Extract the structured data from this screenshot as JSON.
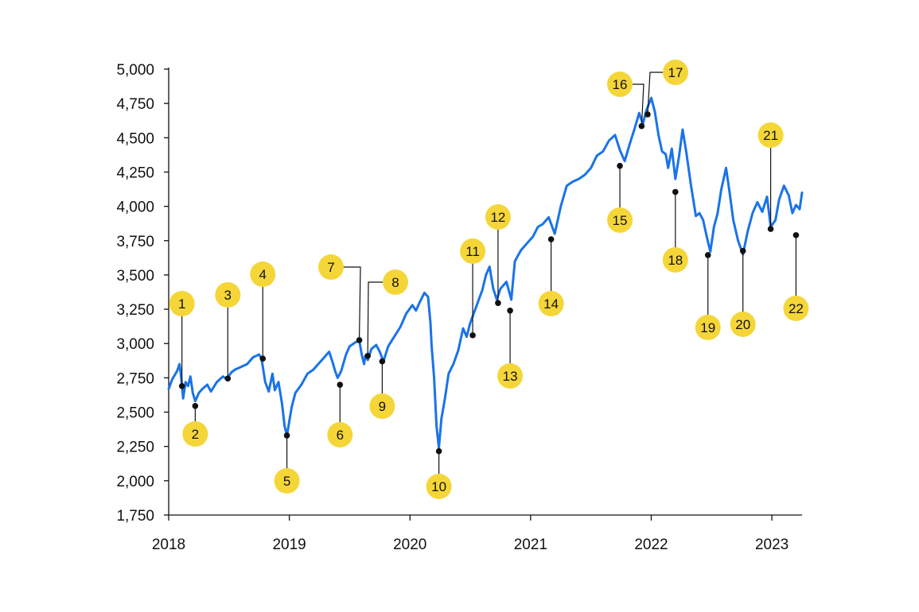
{
  "chart_data": {
    "type": "line",
    "title": "",
    "xlabel": "",
    "ylabel": "",
    "xlim": [
      2018.0,
      2023.25
    ],
    "ylim": [
      1750,
      5000
    ],
    "grid": false,
    "legend": "none",
    "x_ticks": [
      {
        "value": 2018,
        "label": "2018"
      },
      {
        "value": 2019,
        "label": "2019"
      },
      {
        "value": 2020,
        "label": "2020"
      },
      {
        "value": 2021,
        "label": "2021"
      },
      {
        "value": 2022,
        "label": "2022"
      },
      {
        "value": 2023,
        "label": "2023"
      }
    ],
    "y_ticks": [
      {
        "value": 1750,
        "label": "1,750"
      },
      {
        "value": 2000,
        "label": "2,000"
      },
      {
        "value": 2250,
        "label": "2,250"
      },
      {
        "value": 2500,
        "label": "2,500"
      },
      {
        "value": 2750,
        "label": "2,750"
      },
      {
        "value": 3000,
        "label": "3,000"
      },
      {
        "value": 3250,
        "label": "3,250"
      },
      {
        "value": 3500,
        "label": "3,500"
      },
      {
        "value": 3750,
        "label": "3,750"
      },
      {
        "value": 4000,
        "label": "4,000"
      },
      {
        "value": 4250,
        "label": "4,250"
      },
      {
        "value": 4500,
        "label": "4,500"
      },
      {
        "value": 4750,
        "label": "4,750"
      },
      {
        "value": 5000,
        "label": "5,000"
      }
    ],
    "line_color": "#1a73e8",
    "badge_color": "#f5d638",
    "series": [
      {
        "points": [
          [
            2018.0,
            2670
          ],
          [
            2018.03,
            2740
          ],
          [
            2018.07,
            2800
          ],
          [
            2018.09,
            2850
          ],
          [
            2018.1,
            2780
          ],
          [
            2018.12,
            2600
          ],
          [
            2018.14,
            2720
          ],
          [
            2018.16,
            2690
          ],
          [
            2018.18,
            2760
          ],
          [
            2018.2,
            2640
          ],
          [
            2018.22,
            2580
          ],
          [
            2018.25,
            2640
          ],
          [
            2018.28,
            2670
          ],
          [
            2018.32,
            2700
          ],
          [
            2018.35,
            2650
          ],
          [
            2018.4,
            2720
          ],
          [
            2018.45,
            2760
          ],
          [
            2018.48,
            2740
          ],
          [
            2018.52,
            2790
          ],
          [
            2018.55,
            2810
          ],
          [
            2018.6,
            2830
          ],
          [
            2018.65,
            2850
          ],
          [
            2018.7,
            2900
          ],
          [
            2018.75,
            2920
          ],
          [
            2018.77,
            2890
          ],
          [
            2018.8,
            2720
          ],
          [
            2018.83,
            2650
          ],
          [
            2018.86,
            2780
          ],
          [
            2018.88,
            2660
          ],
          [
            2018.91,
            2720
          ],
          [
            2018.94,
            2560
          ],
          [
            2018.96,
            2400
          ],
          [
            2018.98,
            2330
          ],
          [
            2019.02,
            2540
          ],
          [
            2019.05,
            2640
          ],
          [
            2019.1,
            2700
          ],
          [
            2019.15,
            2780
          ],
          [
            2019.2,
            2810
          ],
          [
            2019.25,
            2860
          ],
          [
            2019.3,
            2910
          ],
          [
            2019.33,
            2940
          ],
          [
            2019.36,
            2860
          ],
          [
            2019.38,
            2800
          ],
          [
            2019.4,
            2750
          ],
          [
            2019.43,
            2800
          ],
          [
            2019.47,
            2920
          ],
          [
            2019.5,
            2980
          ],
          [
            2019.55,
            3010
          ],
          [
            2019.58,
            3020
          ],
          [
            2019.6,
            2920
          ],
          [
            2019.62,
            2850
          ],
          [
            2019.63,
            2910
          ],
          [
            2019.65,
            2880
          ],
          [
            2019.68,
            2960
          ],
          [
            2019.72,
            2990
          ],
          [
            2019.75,
            2940
          ],
          [
            2019.78,
            2870
          ],
          [
            2019.82,
            2980
          ],
          [
            2019.87,
            3050
          ],
          [
            2019.92,
            3120
          ],
          [
            2019.97,
            3220
          ],
          [
            2020.02,
            3280
          ],
          [
            2020.05,
            3240
          ],
          [
            2020.08,
            3300
          ],
          [
            2020.12,
            3370
          ],
          [
            2020.15,
            3340
          ],
          [
            2020.17,
            3150
          ],
          [
            2020.18,
            2980
          ],
          [
            2020.2,
            2750
          ],
          [
            2020.22,
            2400
          ],
          [
            2020.24,
            2240
          ],
          [
            2020.26,
            2450
          ],
          [
            2020.29,
            2600
          ],
          [
            2020.32,
            2780
          ],
          [
            2020.36,
            2850
          ],
          [
            2020.4,
            2950
          ],
          [
            2020.44,
            3110
          ],
          [
            2020.47,
            3050
          ],
          [
            2020.5,
            3150
          ],
          [
            2020.55,
            3270
          ],
          [
            2020.6,
            3390
          ],
          [
            2020.63,
            3500
          ],
          [
            2020.66,
            3560
          ],
          [
            2020.69,
            3400
          ],
          [
            2020.72,
            3320
          ],
          [
            2020.75,
            3400
          ],
          [
            2020.8,
            3450
          ],
          [
            2020.84,
            3320
          ],
          [
            2020.87,
            3600
          ],
          [
            2020.92,
            3680
          ],
          [
            2020.97,
            3730
          ],
          [
            2021.02,
            3780
          ],
          [
            2021.06,
            3850
          ],
          [
            2021.1,
            3870
          ],
          [
            2021.15,
            3920
          ],
          [
            2021.2,
            3800
          ],
          [
            2021.25,
            4000
          ],
          [
            2021.3,
            4150
          ],
          [
            2021.35,
            4180
          ],
          [
            2021.4,
            4200
          ],
          [
            2021.45,
            4230
          ],
          [
            2021.5,
            4280
          ],
          [
            2021.55,
            4370
          ],
          [
            2021.6,
            4400
          ],
          [
            2021.65,
            4480
          ],
          [
            2021.7,
            4520
          ],
          [
            2021.74,
            4410
          ],
          [
            2021.78,
            4330
          ],
          [
            2021.82,
            4450
          ],
          [
            2021.86,
            4560
          ],
          [
            2021.9,
            4680
          ],
          [
            2021.93,
            4600
          ],
          [
            2021.96,
            4700
          ],
          [
            2022.0,
            4790
          ],
          [
            2022.03,
            4690
          ],
          [
            2022.06,
            4520
          ],
          [
            2022.09,
            4400
          ],
          [
            2022.12,
            4380
          ],
          [
            2022.14,
            4280
          ],
          [
            2022.17,
            4420
          ],
          [
            2022.2,
            4200
          ],
          [
            2022.23,
            4360
          ],
          [
            2022.26,
            4560
          ],
          [
            2022.29,
            4400
          ],
          [
            2022.33,
            4150
          ],
          [
            2022.37,
            3930
          ],
          [
            2022.4,
            3950
          ],
          [
            2022.43,
            3900
          ],
          [
            2022.46,
            3780
          ],
          [
            2022.49,
            3670
          ],
          [
            2022.52,
            3850
          ],
          [
            2022.55,
            3950
          ],
          [
            2022.58,
            4120
          ],
          [
            2022.62,
            4280
          ],
          [
            2022.65,
            4100
          ],
          [
            2022.68,
            3900
          ],
          [
            2022.72,
            3750
          ],
          [
            2022.76,
            3650
          ],
          [
            2022.8,
            3820
          ],
          [
            2022.84,
            3950
          ],
          [
            2022.88,
            4030
          ],
          [
            2022.92,
            3960
          ],
          [
            2022.96,
            4070
          ],
          [
            2022.99,
            3850
          ],
          [
            2023.03,
            3900
          ],
          [
            2023.06,
            4050
          ],
          [
            2023.1,
            4150
          ],
          [
            2023.14,
            4080
          ],
          [
            2023.17,
            3950
          ],
          [
            2023.2,
            4010
          ],
          [
            2023.23,
            3980
          ],
          [
            2023.25,
            4100
          ]
        ]
      }
    ],
    "annotations": [
      {
        "label": "1",
        "x": 2018.11,
        "y": 2690
      },
      {
        "label": "2",
        "x": 2018.22,
        "y": 2545
      },
      {
        "label": "3",
        "x": 2018.49,
        "y": 2745
      },
      {
        "label": "4",
        "x": 2018.78,
        "y": 2890
      },
      {
        "label": "5",
        "x": 2018.98,
        "y": 2330
      },
      {
        "label": "6",
        "x": 2019.42,
        "y": 2700
      },
      {
        "label": "7",
        "x": 2019.58,
        "y": 3025
      },
      {
        "label": "8",
        "x": 2019.65,
        "y": 2910
      },
      {
        "label": "9",
        "x": 2019.77,
        "y": 2870
      },
      {
        "label": "10",
        "x": 2020.24,
        "y": 2215
      },
      {
        "label": "11",
        "x": 2020.52,
        "y": 3060
      },
      {
        "label": "12",
        "x": 2020.73,
        "y": 3295
      },
      {
        "label": "13",
        "x": 2020.83,
        "y": 3240
      },
      {
        "label": "14",
        "x": 2021.17,
        "y": 3760
      },
      {
        "label": "15",
        "x": 2021.74,
        "y": 4295
      },
      {
        "label": "16",
        "x": 2021.92,
        "y": 4585
      },
      {
        "label": "17",
        "x": 2021.97,
        "y": 4670
      },
      {
        "label": "18",
        "x": 2022.2,
        "y": 4105
      },
      {
        "label": "19",
        "x": 2022.47,
        "y": 3645
      },
      {
        "label": "20",
        "x": 2022.76,
        "y": 3675
      },
      {
        "label": "21",
        "x": 2022.99,
        "y": 3835
      },
      {
        "label": "22",
        "x": 2023.2,
        "y": 3790
      }
    ]
  }
}
